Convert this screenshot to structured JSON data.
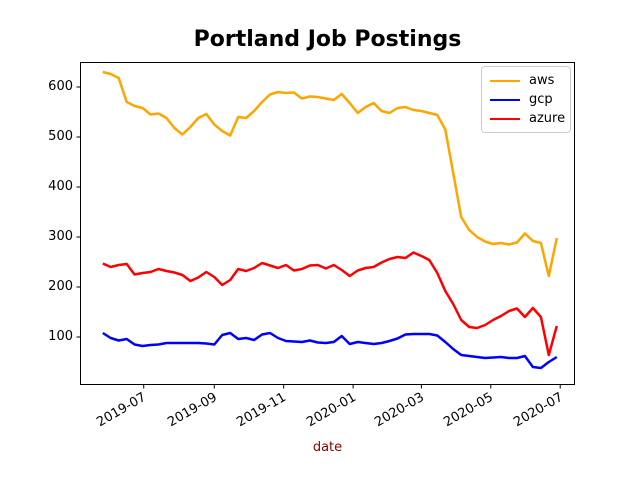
{
  "title": "Portland Job Postings",
  "xlabel": "date",
  "colors": {
    "aws": "#FFA500",
    "gcp": "#0000FF",
    "azure": "#FF0000",
    "xlabel_text": "#8B0000",
    "frame": "#000000",
    "legend_border": "#cccccc"
  },
  "legend": {
    "position": "upper right",
    "items": [
      "aws",
      "gcp",
      "azure"
    ]
  },
  "chart_data": {
    "type": "line",
    "title": "Portland Job Postings",
    "xlabel": "date",
    "ylabel": "",
    "grid": false,
    "legend_position": "upper right",
    "ylim": [
      4,
      650
    ],
    "yticks": [
      100,
      200,
      300,
      400,
      500,
      600
    ],
    "xlim_days": [
      -20,
      415
    ],
    "xticks": [
      {
        "label": "2019-07",
        "day": 36
      },
      {
        "label": "2019-09",
        "day": 98
      },
      {
        "label": "2019-11",
        "day": 159
      },
      {
        "label": "2020-01",
        "day": 220
      },
      {
        "label": "2020-03",
        "day": 280
      },
      {
        "label": "2020-05",
        "day": 341
      },
      {
        "label": "2020-07",
        "day": 402
      }
    ],
    "x_dates": [
      "2019-05-26",
      "2019-06-02",
      "2019-06-09",
      "2019-06-16",
      "2019-06-23",
      "2019-06-30",
      "2019-07-07",
      "2019-07-14",
      "2019-07-21",
      "2019-07-28",
      "2019-08-04",
      "2019-08-11",
      "2019-08-18",
      "2019-08-25",
      "2019-09-01",
      "2019-09-08",
      "2019-09-15",
      "2019-09-22",
      "2019-09-29",
      "2019-10-06",
      "2019-10-13",
      "2019-10-20",
      "2019-10-27",
      "2019-11-03",
      "2019-11-10",
      "2019-11-17",
      "2019-11-24",
      "2019-12-01",
      "2019-12-08",
      "2019-12-15",
      "2019-12-22",
      "2019-12-29",
      "2020-01-05",
      "2020-01-12",
      "2020-01-19",
      "2020-01-26",
      "2020-02-02",
      "2020-02-09",
      "2020-02-16",
      "2020-02-23",
      "2020-03-01",
      "2020-03-08",
      "2020-03-15",
      "2020-03-22",
      "2020-03-29",
      "2020-04-05",
      "2020-04-12",
      "2020-04-19",
      "2020-04-26",
      "2020-05-03",
      "2020-05-10",
      "2020-05-17",
      "2020-05-24",
      "2020-05-31",
      "2020-06-07",
      "2020-06-14",
      "2020-06-21",
      "2020-06-28"
    ],
    "series": [
      {
        "name": "aws",
        "color": "#FFA500",
        "values": [
          630,
          626,
          618,
          570,
          562,
          558,
          545,
          547,
          538,
          518,
          505,
          520,
          538,
          546,
          525,
          512,
          503,
          540,
          538,
          552,
          570,
          585,
          590,
          588,
          589,
          577,
          581,
          580,
          577,
          574,
          586,
          568,
          548,
          560,
          568,
          552,
          548,
          558,
          560,
          554,
          552,
          548,
          544,
          515,
          428,
          340,
          314,
          300,
          291,
          286,
          288,
          285,
          289,
          307,
          292,
          288,
          222,
          298
        ]
      },
      {
        "name": "gcp",
        "color": "#0000FF",
        "values": [
          108,
          98,
          93,
          96,
          85,
          82,
          84,
          85,
          88,
          88,
          88,
          88,
          88,
          87,
          85,
          104,
          108,
          96,
          98,
          94,
          105,
          108,
          98,
          92,
          91,
          90,
          93,
          89,
          88,
          90,
          102,
          86,
          90,
          88,
          86,
          88,
          92,
          97,
          105,
          106,
          106,
          106,
          103,
          90,
          76,
          64,
          62,
          60,
          58,
          59,
          60,
          58,
          58,
          62,
          40,
          38,
          50,
          60
        ]
      },
      {
        "name": "azure",
        "color": "#FF0000",
        "values": [
          247,
          240,
          244,
          246,
          225,
          228,
          230,
          236,
          232,
          229,
          224,
          212,
          219,
          230,
          220,
          204,
          214,
          236,
          232,
          238,
          248,
          243,
          238,
          244,
          233,
          236,
          243,
          244,
          237,
          244,
          234,
          222,
          233,
          238,
          240,
          249,
          256,
          260,
          258,
          269,
          262,
          254,
          228,
          192,
          166,
          134,
          120,
          118,
          124,
          134,
          142,
          152,
          157,
          140,
          158,
          140,
          64,
          122
        ]
      }
    ]
  }
}
